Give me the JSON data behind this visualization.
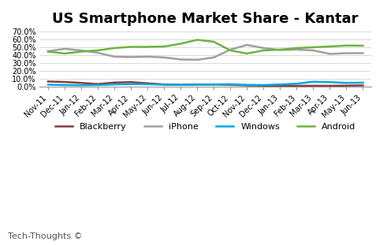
{
  "title": "US Smartphone Market Share - Kantar",
  "watermark": "Tech-Thoughts ©",
  "categories": [
    "Nov-11",
    "Dec-11",
    "Jan-12",
    "Feb-12",
    "Mar-12",
    "Apr-12",
    "May-12",
    "Jun-12",
    "Jul-12",
    "Aug-12",
    "Sep-12",
    "Oct-12",
    "Nov-12",
    "Dec-12",
    "Jan-13",
    "Feb-13",
    "Mar-13",
    "Apr-13",
    "May-13",
    "Jun-13"
  ],
  "blackberry": [
    0.063,
    0.057,
    0.045,
    0.03,
    0.05,
    0.055,
    0.04,
    0.025,
    0.02,
    0.025,
    0.025,
    0.02,
    0.013,
    0.01,
    0.008,
    0.008,
    0.008,
    0.008,
    0.01,
    0.013
  ],
  "iphone": [
    0.45,
    0.48,
    0.46,
    0.43,
    0.38,
    0.375,
    0.38,
    0.37,
    0.345,
    0.34,
    0.37,
    0.47,
    0.53,
    0.49,
    0.465,
    0.47,
    0.46,
    0.415,
    0.425,
    0.425
  ],
  "windows": [
    0.022,
    0.018,
    0.015,
    0.018,
    0.025,
    0.03,
    0.028,
    0.022,
    0.02,
    0.022,
    0.025,
    0.028,
    0.02,
    0.018,
    0.025,
    0.035,
    0.06,
    0.055,
    0.045,
    0.048
  ],
  "android": [
    0.445,
    0.42,
    0.445,
    0.46,
    0.49,
    0.505,
    0.505,
    0.51,
    0.545,
    0.595,
    0.57,
    0.46,
    0.42,
    0.46,
    0.47,
    0.49,
    0.5,
    0.51,
    0.522,
    0.52
  ],
  "blackberry_color": "#8B3A3A",
  "iphone_color": "#A0A0A0",
  "windows_color": "#00AADD",
  "android_color": "#6DB33F",
  "ylim": [
    0,
    0.7
  ],
  "yticks": [
    0.0,
    0.1,
    0.2,
    0.3,
    0.4,
    0.5,
    0.6,
    0.7
  ],
  "title_fontsize": 13,
  "legend_fontsize": 8,
  "tick_fontsize": 7,
  "watermark_fontsize": 8,
  "linewidth": 1.8,
  "background_color": "#FFFFFF"
}
